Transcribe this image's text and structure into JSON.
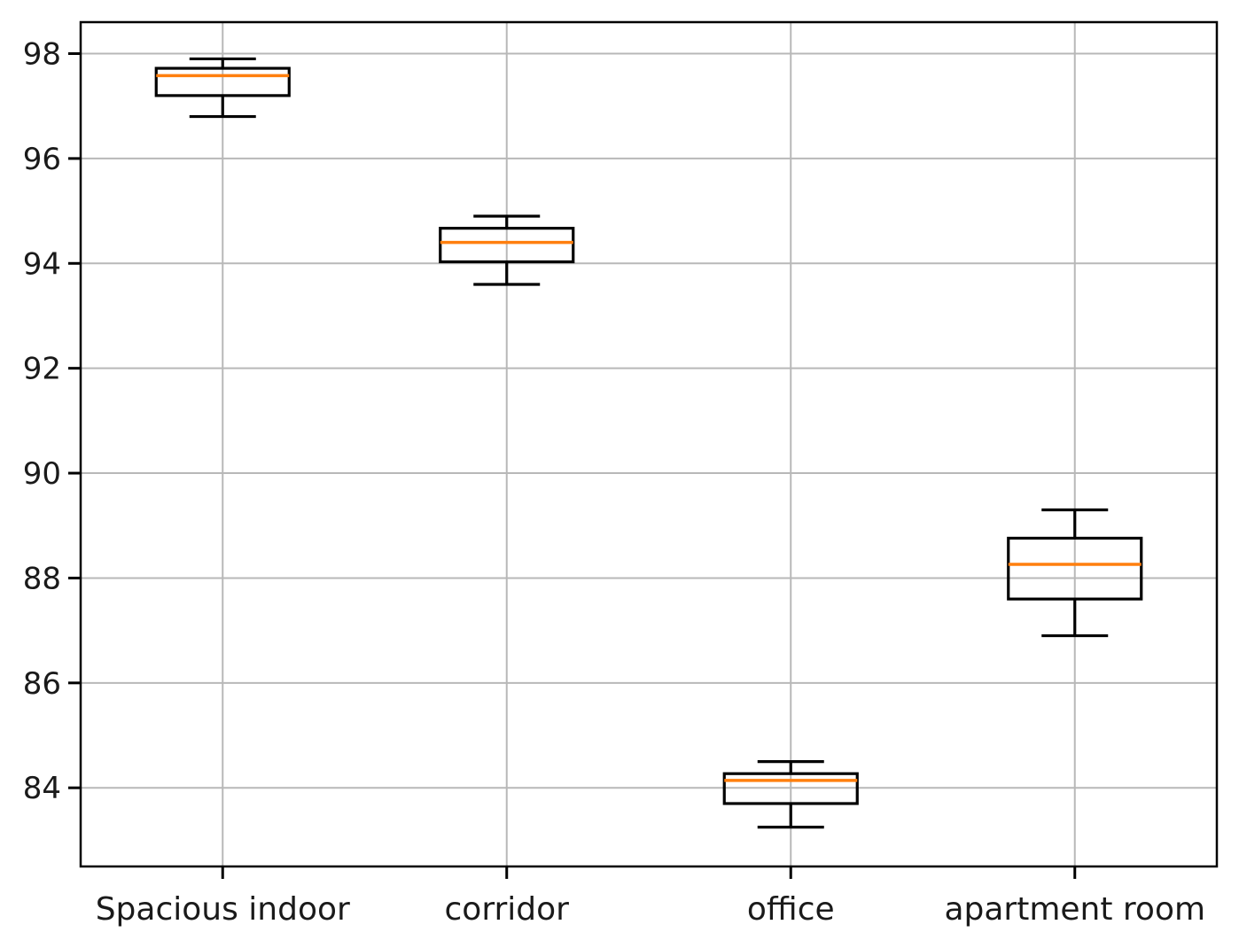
{
  "figure": {
    "background": "#ffffff"
  },
  "chart_data": {
    "type": "boxplot",
    "title": "",
    "xlabel": "",
    "ylabel": "",
    "categories": [
      "Spacious indoor",
      "corridor",
      "office",
      "apartment room"
    ],
    "series": [
      {
        "name": "Spacious indoor",
        "whisker_low": 96.8,
        "q1": 97.2,
        "median": 97.58,
        "q3": 97.72,
        "whisker_high": 97.9
      },
      {
        "name": "corridor",
        "whisker_low": 93.6,
        "q1": 94.03,
        "median": 94.4,
        "q3": 94.67,
        "whisker_high": 94.9
      },
      {
        "name": "office",
        "whisker_low": 83.25,
        "q1": 83.7,
        "median": 84.14,
        "q3": 84.27,
        "whisker_high": 84.5
      },
      {
        "name": "apartment room",
        "whisker_low": 86.9,
        "q1": 87.6,
        "median": 88.26,
        "q3": 88.76,
        "whisker_high": 89.3
      }
    ],
    "yticks": [
      84,
      86,
      88,
      90,
      92,
      94,
      96,
      98
    ],
    "ylim": [
      82.5,
      98.6
    ],
    "grid": true,
    "legend_position": "none",
    "colors": {
      "median": "#ff7f0e",
      "box_stroke": "#000000",
      "whisker": "#000000",
      "grid": "#b8b8b8",
      "frame": "#000000",
      "tick_label": "#1a1a1a"
    }
  }
}
